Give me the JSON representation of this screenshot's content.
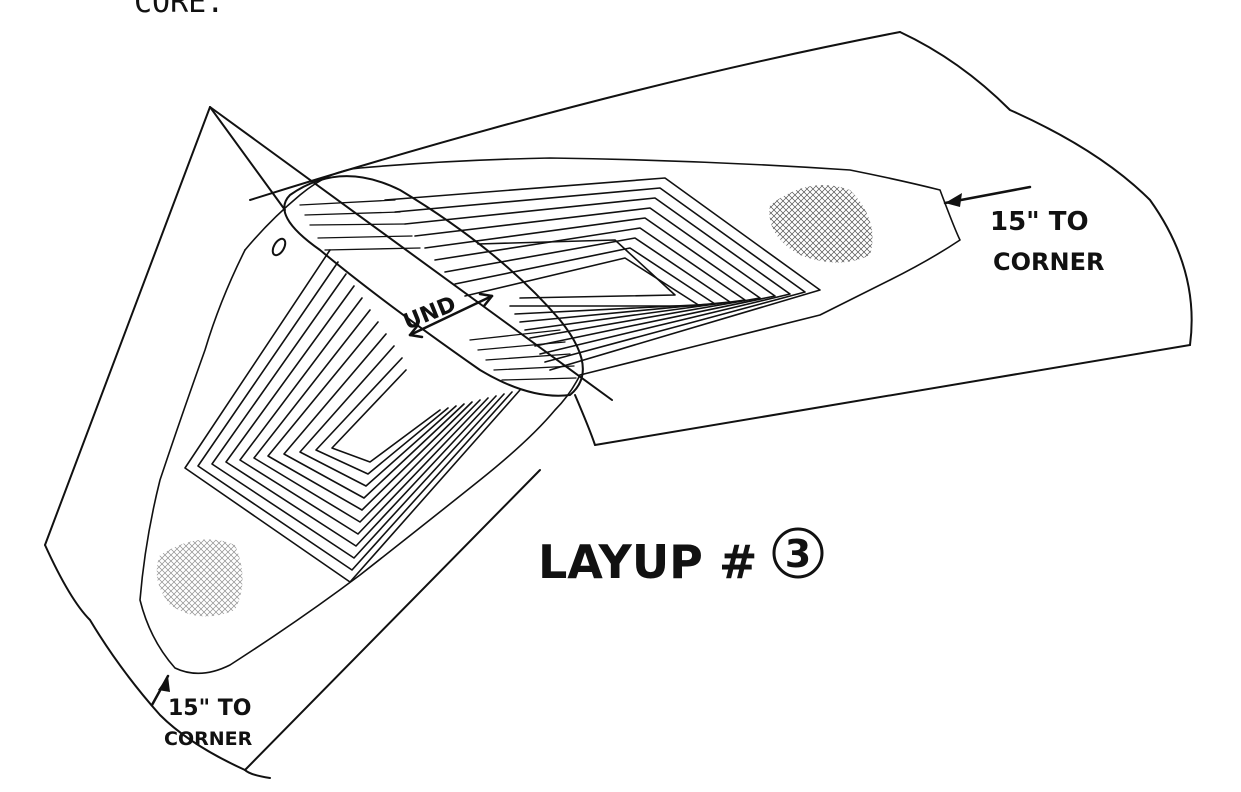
{
  "header_text": "CORE.",
  "labels": {
    "top_right_line1": "15\" TO",
    "top_right_line2": "CORNER",
    "bottom_left_line1": "15\" TO",
    "bottom_left_line2": "CORNER",
    "unid": "UND",
    "layup_title": "LAYUP #",
    "layup_number": "3",
    "zero_mark": "0"
  },
  "colors": {
    "ink": "#111111",
    "paper": "#ffffff"
  }
}
